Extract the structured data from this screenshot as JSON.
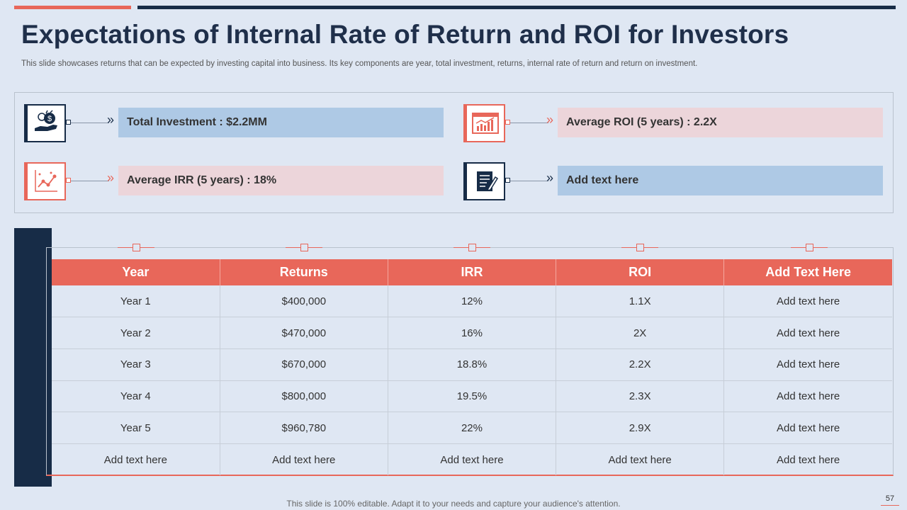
{
  "title": "Expectations of Internal Rate of Return and ROI for Investors",
  "subtitle": "This slide showcases returns that can be expected by investing capital into business. Its key components are year, total investment, returns, internal rate of return and return on investment.",
  "kpis": {
    "total_investment": "Total Investment : $2.2MM",
    "avg_roi": "Average ROI (5 years) : 2.2X",
    "avg_irr": "Average IRR (5 years) : 18%",
    "add_text": "Add text here",
    "chevron": "»"
  },
  "table": {
    "headers": [
      "Year",
      "Returns",
      "IRR",
      "ROI",
      "Add Text Here"
    ],
    "rows": [
      [
        "Year 1",
        "$400,000",
        "12%",
        "1.1X",
        "Add text here"
      ],
      [
        "Year 2",
        "$470,000",
        "16%",
        "2X",
        "Add text here"
      ],
      [
        "Year 3",
        "$670,000",
        "18.8%",
        "2.2X",
        "Add text here"
      ],
      [
        "Year 4",
        "$800,000",
        "19.5%",
        "2.3X",
        "Add text here"
      ],
      [
        "Year 5",
        "$960,780",
        "22%",
        "2.9X",
        "Add text here"
      ],
      [
        "Add text here",
        "Add text here",
        "Add text here",
        "Add text here",
        "Add text here"
      ]
    ]
  },
  "footer": "This slide is 100% editable. Adapt it to your needs and capture your audience's attention.",
  "page_number": "57",
  "colors": {
    "accent": "#e8675a",
    "navy": "#172c47",
    "blue_bar": "#aec9e5",
    "pink_bar": "#ecd5da",
    "background": "#dfe7f3"
  }
}
